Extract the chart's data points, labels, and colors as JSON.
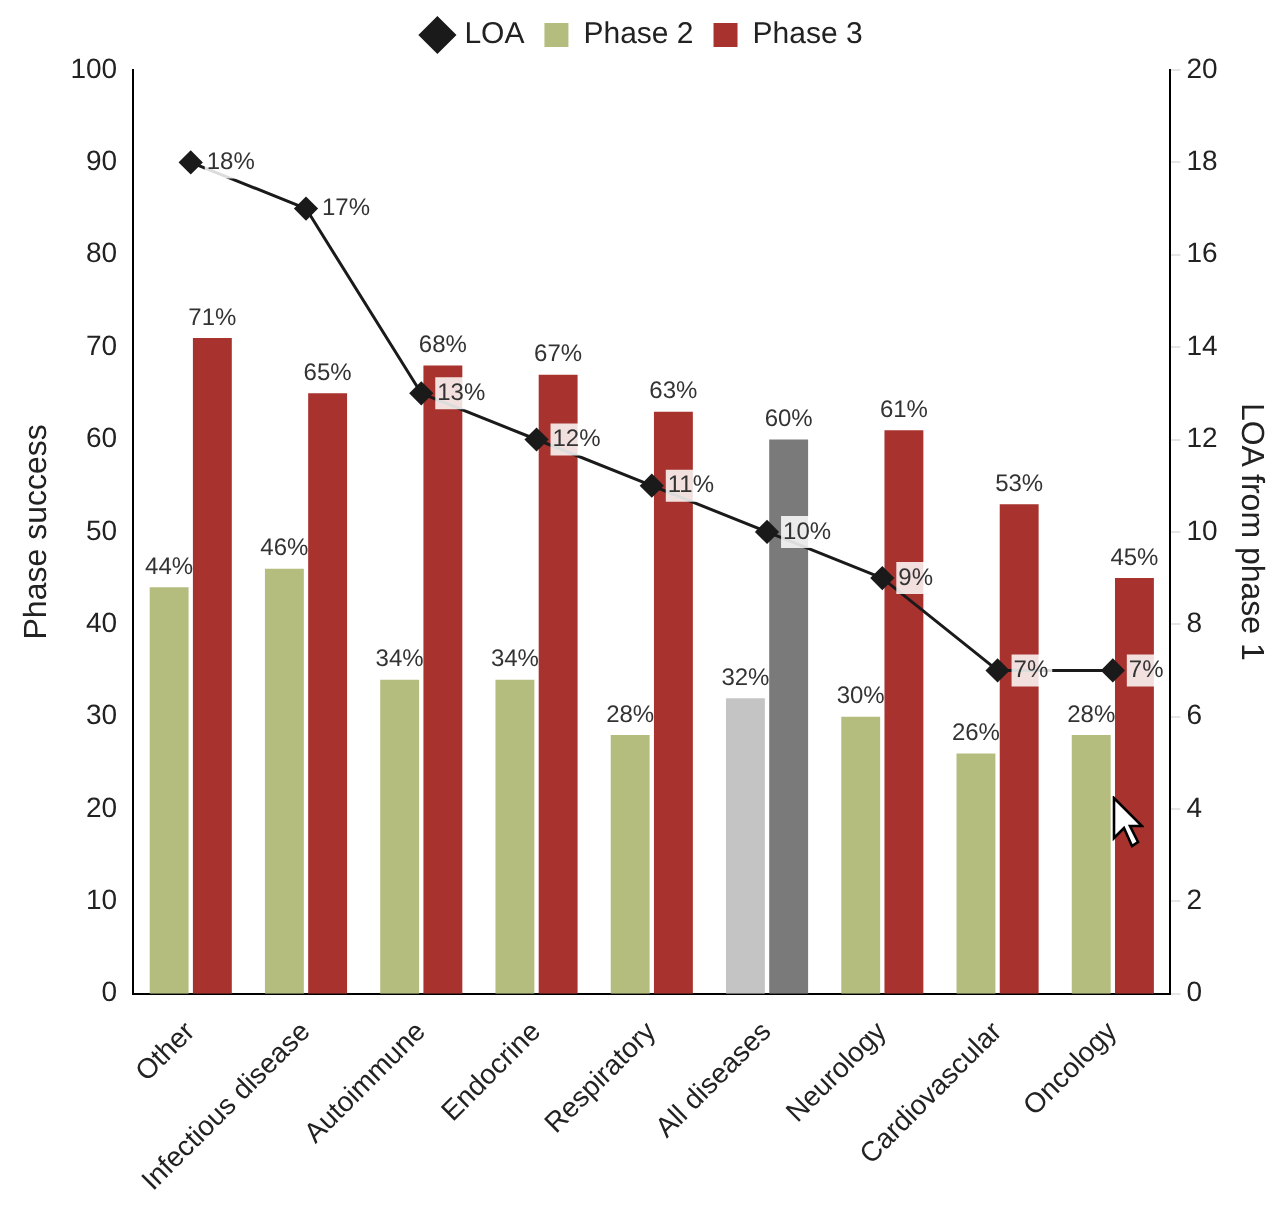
{
  "chart_data": {
    "type": "bar",
    "ylabel": "Phase success",
    "y2label": "LOA from phase 1",
    "categories": [
      "Other",
      "Infectious disease",
      "Autoimmune",
      "Endocrine",
      "Respiratory",
      "All diseases",
      "Neurology",
      "Cardiovascular",
      "Oncology"
    ],
    "series": [
      {
        "name": "Phase 2",
        "color": "#b5bd7e",
        "colors": [
          "#b5bd7e",
          "#b5bd7e",
          "#b5bd7e",
          "#b5bd7e",
          "#b5bd7e",
          "#c4c4c4",
          "#b5bd7e",
          "#b5bd7e",
          "#b5bd7e"
        ],
        "values": [
          44,
          46,
          34,
          34,
          28,
          32,
          30,
          26,
          28
        ],
        "value_labels": [
          "44%",
          "46%",
          "34%",
          "34%",
          "28%",
          "32%",
          "30%",
          "26%",
          "28%"
        ]
      },
      {
        "name": "Phase 3",
        "color": "#a8322d",
        "colors": [
          "#a8322d",
          "#a8322d",
          "#a8322d",
          "#a8322d",
          "#a8322d",
          "#7a7a7a",
          "#a8322d",
          "#a8322d",
          "#a8322d"
        ],
        "values": [
          71,
          65,
          68,
          67,
          63,
          60,
          61,
          53,
          45
        ],
        "value_labels": [
          "71%",
          "65%",
          "68%",
          "67%",
          "63%",
          "60%",
          "61%",
          "53%",
          "45%"
        ]
      },
      {
        "name": "LOA",
        "type": "line",
        "axis": "y2",
        "color": "#1a1a1a",
        "marker": "diamond",
        "values": [
          18,
          17,
          13,
          12,
          11,
          10,
          9,
          7,
          7
        ],
        "value_labels": [
          "18%",
          "17%",
          "13%",
          "12%",
          "11%",
          "10%",
          "9%",
          "7%",
          "7%"
        ]
      }
    ],
    "ylim": [
      0,
      100
    ],
    "yticks": [
      0,
      10,
      20,
      30,
      40,
      50,
      60,
      70,
      80,
      90,
      100
    ],
    "y2lim": [
      0,
      20
    ],
    "y2ticks": [
      0,
      2,
      4,
      6,
      8,
      10,
      12,
      14,
      16,
      18,
      20
    ],
    "grid": false,
    "legend": "top"
  }
}
